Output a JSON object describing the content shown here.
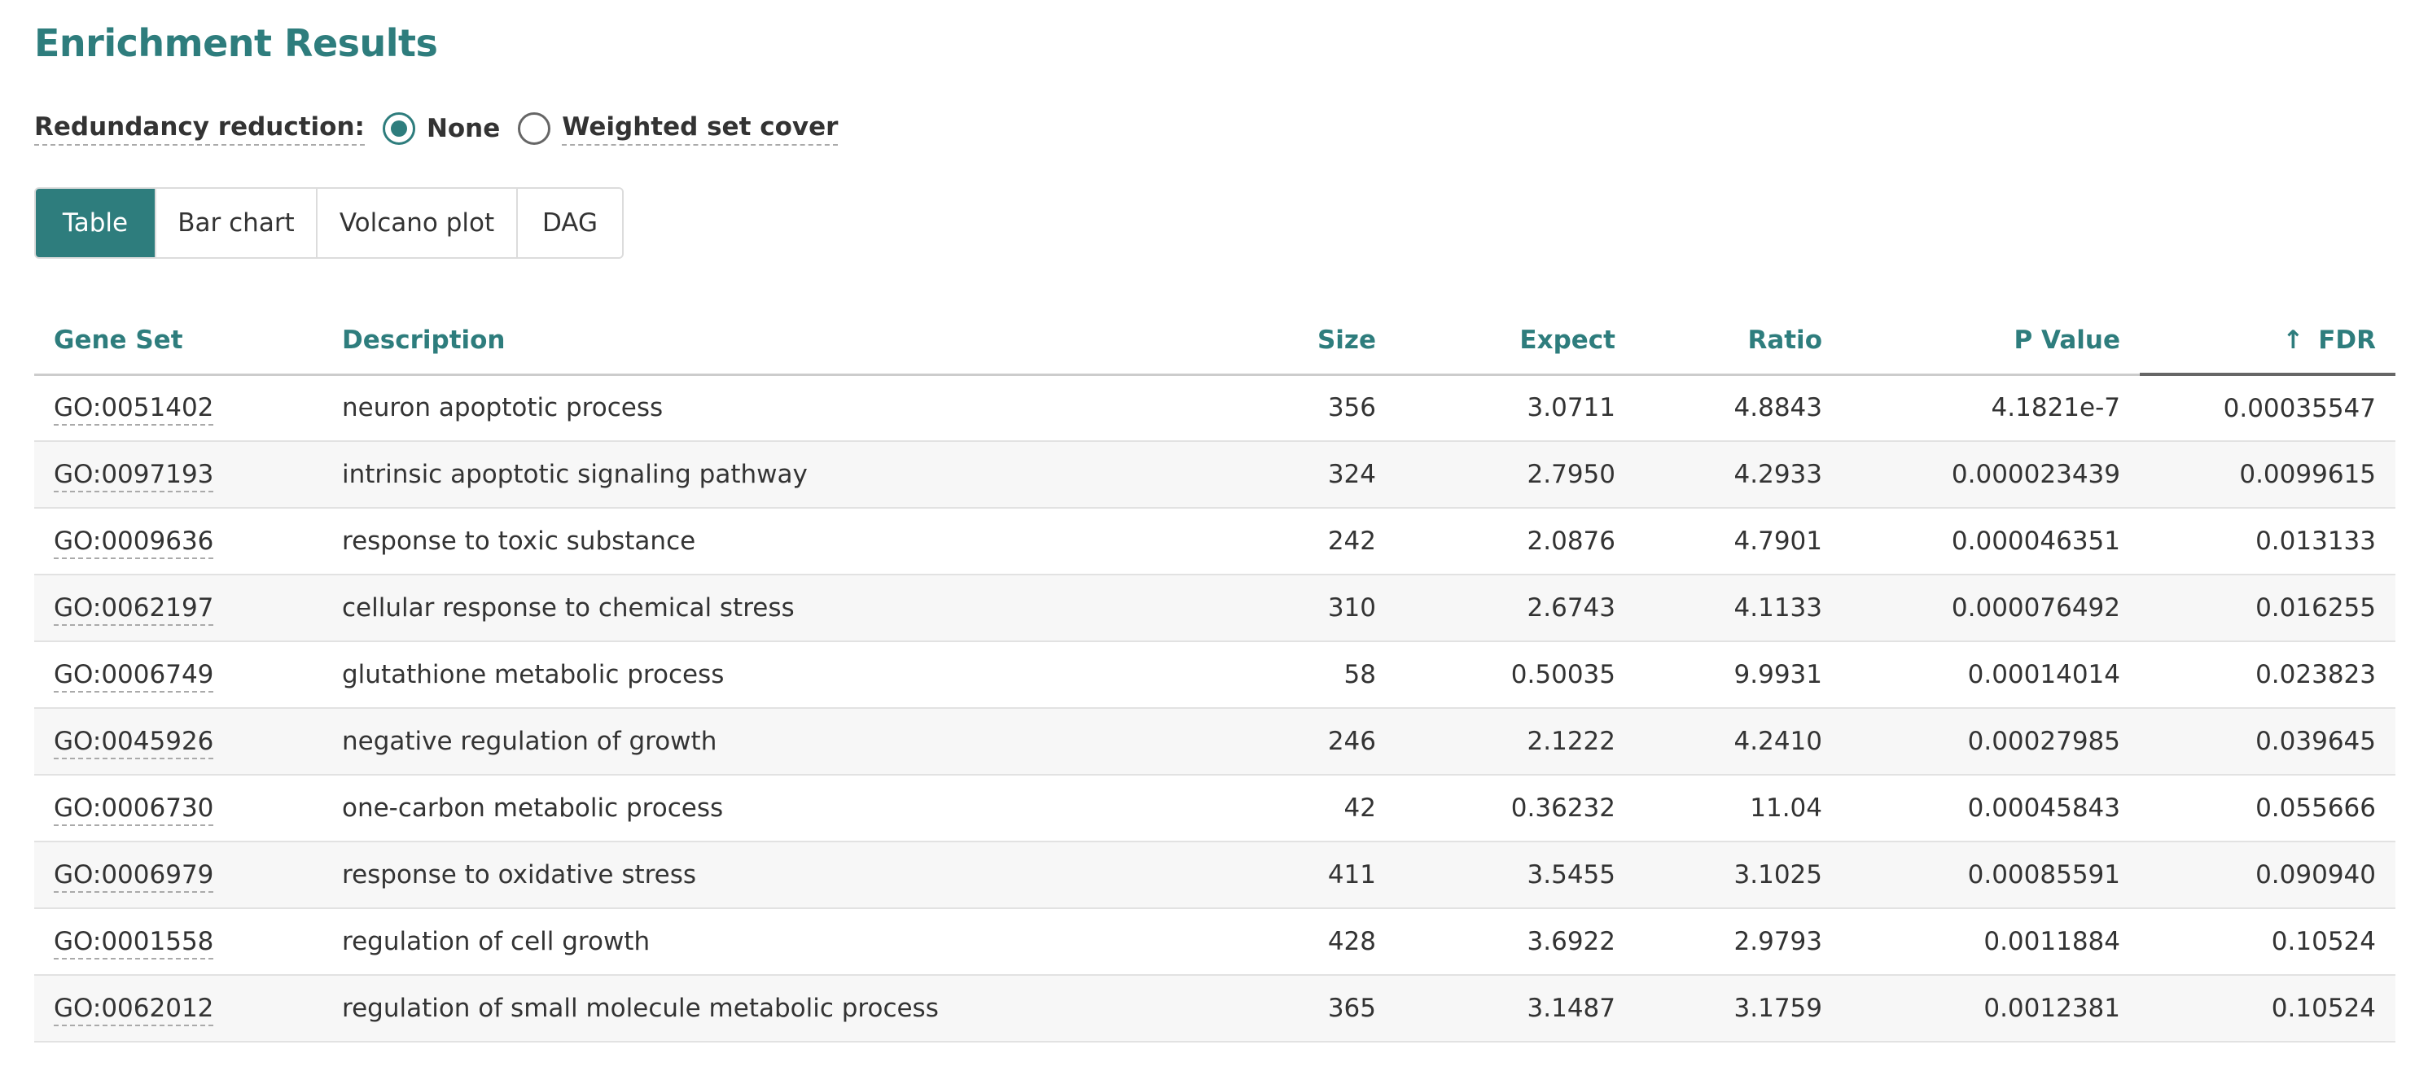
{
  "title": "Enrichment Results",
  "redundancy": {
    "label": "Redundancy reduction:",
    "options": [
      {
        "label": "None",
        "checked": true
      },
      {
        "label": "Weighted set cover",
        "checked": false
      }
    ]
  },
  "tabs": [
    {
      "label": "Table",
      "active": true
    },
    {
      "label": "Bar chart",
      "active": false
    },
    {
      "label": "Volcano plot",
      "active": false
    },
    {
      "label": "DAG",
      "active": false
    }
  ],
  "table": {
    "columns": [
      "Gene Set",
      "Description",
      "Size",
      "Expect",
      "Ratio",
      "P Value",
      "FDR"
    ],
    "sort": {
      "column": "FDR",
      "direction": "ascending",
      "icon": "arrow-up-icon"
    },
    "rows": [
      [
        "GO:0051402",
        "neuron apoptotic process",
        "356",
        "3.0711",
        "4.8843",
        "4.1821e-7",
        "0.00035547"
      ],
      [
        "GO:0097193",
        "intrinsic apoptotic signaling pathway",
        "324",
        "2.7950",
        "4.2933",
        "0.000023439",
        "0.0099615"
      ],
      [
        "GO:0009636",
        "response to toxic substance",
        "242",
        "2.0876",
        "4.7901",
        "0.000046351",
        "0.013133"
      ],
      [
        "GO:0062197",
        "cellular response to chemical stress",
        "310",
        "2.6743",
        "4.1133",
        "0.000076492",
        "0.016255"
      ],
      [
        "GO:0006749",
        "glutathione metabolic process",
        "58",
        "0.50035",
        "9.9931",
        "0.00014014",
        "0.023823"
      ],
      [
        "GO:0045926",
        "negative regulation of growth",
        "246",
        "2.1222",
        "4.2410",
        "0.00027985",
        "0.039645"
      ],
      [
        "GO:0006730",
        "one-carbon metabolic process",
        "42",
        "0.36232",
        "11.04",
        "0.00045843",
        "0.055666"
      ],
      [
        "GO:0006979",
        "response to oxidative stress",
        "411",
        "3.5455",
        "3.1025",
        "0.00085591",
        "0.090940"
      ],
      [
        "GO:0001558",
        "regulation of cell growth",
        "428",
        "3.6922",
        "2.9793",
        "0.0011884",
        "0.10524"
      ],
      [
        "GO:0062012",
        "regulation of small molecule metabolic process",
        "365",
        "3.1487",
        "3.1759",
        "0.0012381",
        "0.10524"
      ]
    ]
  },
  "colors": {
    "accent": "#2e7d7d",
    "text": "#333333",
    "row_alt": "#f7f7f7"
  }
}
